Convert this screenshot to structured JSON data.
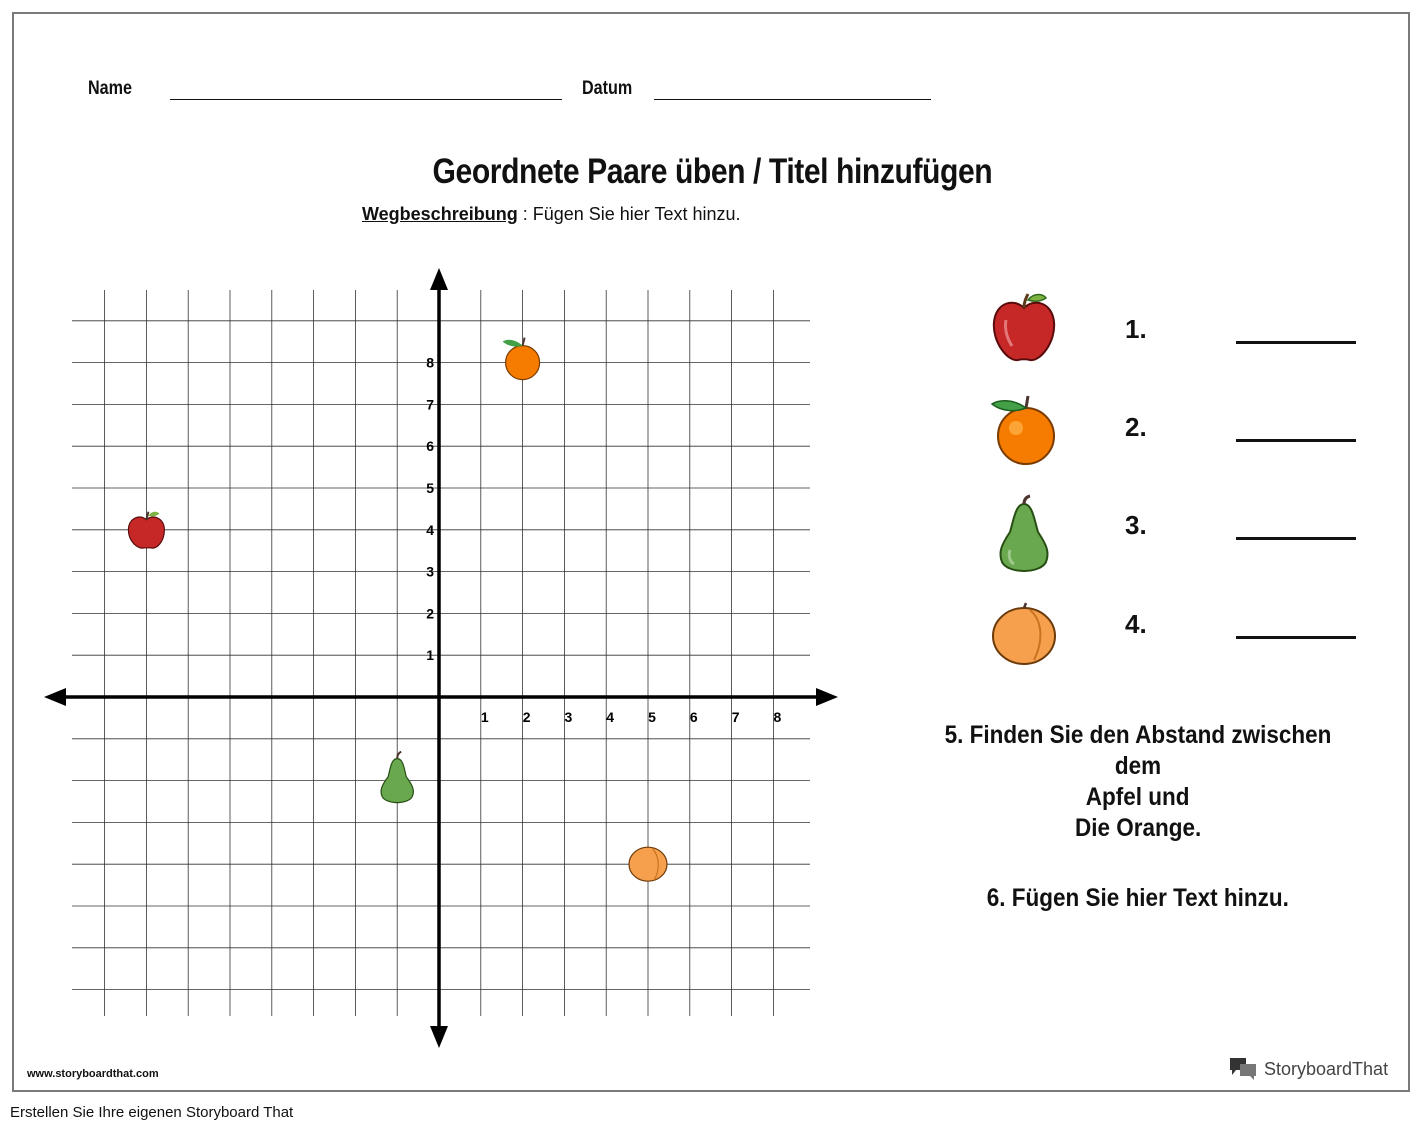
{
  "header": {
    "name_label": "Name",
    "date_label": "Datum"
  },
  "title": "Geordnete Paare üben / Titel hinzufügen",
  "directions": {
    "label": "Wegbeschreibung",
    "separator": " : ",
    "text": "Fügen Sie hier Text hinzu."
  },
  "chart_data": {
    "type": "scatter",
    "title": "",
    "xlabel": "",
    "ylabel": "",
    "xlim": [
      -9,
      9
    ],
    "ylim": [
      -9,
      9
    ],
    "grid": true,
    "x_tick_labels": [
      "1",
      "2",
      "3",
      "4",
      "5",
      "6",
      "7",
      "8"
    ],
    "y_tick_labels": [
      "1",
      "2",
      "3",
      "4",
      "5",
      "6",
      "7",
      "8"
    ],
    "points": [
      {
        "icon": "apple-icon",
        "x": -7,
        "y": 4,
        "color": "#c62828"
      },
      {
        "icon": "orange-icon",
        "x": 2,
        "y": 8,
        "color": "#f57c00"
      },
      {
        "icon": "pear-icon",
        "x": -1,
        "y": -2,
        "color": "#6aa84f"
      },
      {
        "icon": "peach-icon",
        "x": 5,
        "y": -4,
        "color": "#f6a04d"
      }
    ]
  },
  "questions": [
    {
      "number": "1.",
      "icon": "apple-icon"
    },
    {
      "number": "2.",
      "icon": "orange-icon"
    },
    {
      "number": "3.",
      "icon": "pear-icon"
    },
    {
      "number": "4.",
      "icon": "peach-icon"
    }
  ],
  "question5": {
    "line1": "5. Finden Sie den Abstand zwischen dem",
    "line2": "Apfel und",
    "line3": "Die Orange."
  },
  "question6": "6. Fügen Sie hier Text hinzu.",
  "footer": {
    "site": "www.storyboardthat.com",
    "brand": "StoryboardThat",
    "caption": "Erstellen Sie Ihre eigenen Storyboard That"
  }
}
